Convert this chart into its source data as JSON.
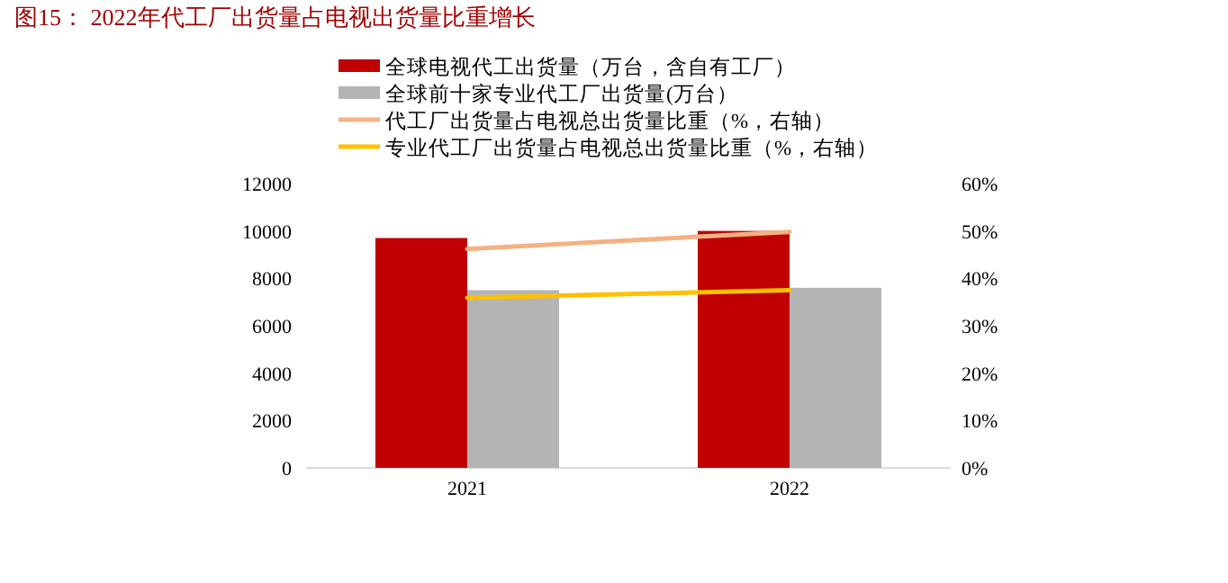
{
  "chart_data": {
    "type": "bar",
    "title": "图15： 2022年代工厂出货量占电视出货量比重增长",
    "categories": [
      "2021",
      "2022"
    ],
    "series": [
      {
        "name": "全球电视代工出货量（万台，含自有工厂）",
        "color": "#c00000",
        "values": [
          9700,
          10000
        ]
      },
      {
        "name": "全球前十家专业代工厂出货量(万台）",
        "color": "#b4b4b4",
        "values": [
          7500,
          7600
        ]
      },
      {
        "name": "代工厂出货量占电视总出货量比重（%，右轴）",
        "type": "line",
        "axis": "y2",
        "color": "#f4b183",
        "values": [
          46.2,
          49.8
        ]
      },
      {
        "name": "专业代工厂出货量占电视总出货量比重（%，右轴）",
        "type": "line",
        "axis": "y2",
        "color": "#ffc000",
        "values": [
          35.9,
          37.5
        ]
      }
    ],
    "ylim": [
      0,
      12000
    ],
    "yticks": [
      0,
      2000,
      4000,
      6000,
      8000,
      10000,
      12000
    ],
    "y2lim": [
      0,
      60
    ],
    "y2ticks": [
      {
        "value": 0,
        "label": "0%"
      },
      {
        "value": 10,
        "label": "10%"
      },
      {
        "value": 20,
        "label": "20%"
      },
      {
        "value": 30,
        "label": "30%"
      },
      {
        "value": 40,
        "label": "40%"
      },
      {
        "value": 50,
        "label": "50%"
      },
      {
        "value": 60,
        "label": "60%"
      }
    ],
    "legend": "top",
    "grid": false,
    "marker": "none",
    "line_style": "solid"
  }
}
